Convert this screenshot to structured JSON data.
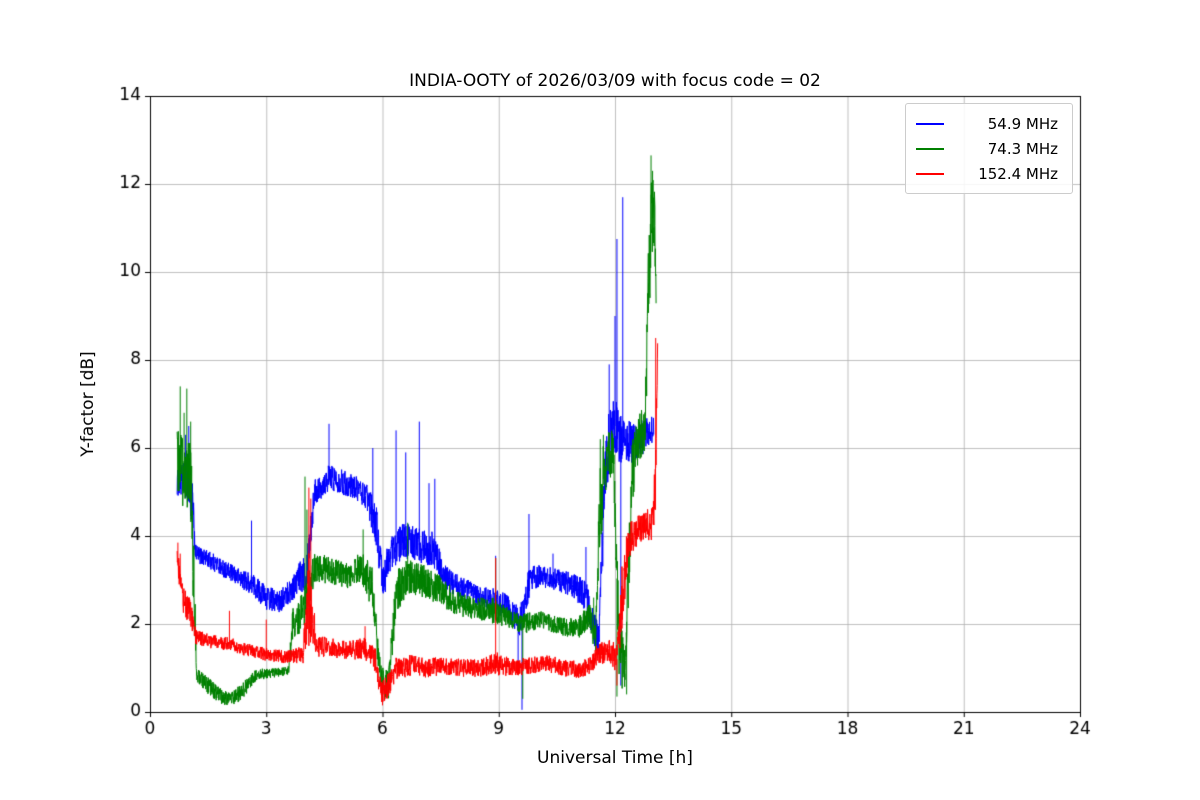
{
  "chart_data": {
    "type": "line",
    "title": "INDIA-OOTY of 2026/03/09 with focus code = 02",
    "xlabel": "Universal Time [h]",
    "ylabel": "Y-factor [dB]",
    "xlim": [
      0,
      24
    ],
    "ylim": [
      0,
      14
    ],
    "xticks": [
      0,
      3,
      6,
      9,
      12,
      15,
      18,
      21,
      24
    ],
    "yticks": [
      0,
      2,
      4,
      6,
      8,
      10,
      12,
      14
    ],
    "grid": true,
    "grid_color": "#b0b0b0",
    "background": "#ffffff",
    "text_color": "#000000",
    "axes_color": "#000000",
    "legend_position": "upper right",
    "series": [
      {
        "name": "54.9 MHz",
        "color": "#0000ff",
        "profile": [
          [
            0.7,
            5.2,
            0.3
          ],
          [
            0.95,
            5.3,
            0.45
          ],
          [
            1.1,
            4.6,
            0.6
          ],
          [
            1.18,
            3.6,
            0.2
          ],
          [
            1.55,
            3.45,
            0.2
          ],
          [
            2.2,
            3.1,
            0.2
          ],
          [
            2.65,
            2.9,
            0.25
          ],
          [
            3.0,
            2.6,
            0.28
          ],
          [
            3.35,
            2.5,
            0.25
          ],
          [
            3.75,
            2.9,
            0.3
          ],
          [
            4.05,
            3.3,
            0.5
          ],
          [
            4.25,
            5.0,
            0.3
          ],
          [
            4.65,
            5.35,
            0.3
          ],
          [
            5.3,
            5.1,
            0.27
          ],
          [
            5.6,
            4.9,
            0.3
          ],
          [
            5.85,
            4.2,
            0.5
          ],
          [
            6.0,
            2.9,
            0.45
          ],
          [
            6.2,
            3.6,
            0.4
          ],
          [
            6.55,
            3.9,
            0.4
          ],
          [
            7.3,
            3.7,
            0.4
          ],
          [
            7.65,
            3.0,
            0.3
          ],
          [
            8.1,
            2.8,
            0.25
          ],
          [
            8.55,
            2.6,
            0.25
          ],
          [
            8.95,
            2.5,
            0.3
          ],
          [
            9.25,
            2.35,
            0.3
          ],
          [
            9.55,
            2.05,
            0.35
          ],
          [
            9.78,
            2.9,
            0.4
          ],
          [
            10.05,
            3.1,
            0.25
          ],
          [
            10.55,
            3.0,
            0.25
          ],
          [
            10.95,
            2.85,
            0.3
          ],
          [
            11.25,
            2.65,
            0.35
          ],
          [
            11.45,
            1.9,
            0.4
          ],
          [
            11.58,
            1.6,
            0.35
          ],
          [
            11.75,
            5.5,
            0.9
          ],
          [
            11.95,
            6.6,
            0.7
          ],
          [
            12.15,
            6.2,
            0.6
          ],
          [
            12.45,
            6.1,
            0.45
          ],
          [
            12.75,
            6.25,
            0.4
          ],
          [
            13.0,
            6.45,
            0.3
          ]
        ],
        "spikes": [
          [
            0.78,
            6.0
          ],
          [
            0.92,
            6.3
          ],
          [
            1.0,
            6.5
          ],
          [
            2.62,
            4.35
          ],
          [
            4.62,
            6.55
          ],
          [
            5.75,
            6.0
          ],
          [
            6.35,
            6.4
          ],
          [
            6.6,
            5.9
          ],
          [
            6.95,
            6.6
          ],
          [
            7.2,
            5.2
          ],
          [
            7.35,
            5.3
          ],
          [
            8.92,
            3.55
          ],
          [
            9.5,
            0.9
          ],
          [
            9.6,
            0.05
          ],
          [
            9.78,
            4.5
          ],
          [
            10.4,
            3.6
          ],
          [
            11.25,
            3.75
          ],
          [
            11.85,
            7.9
          ],
          [
            12.0,
            9.0
          ],
          [
            12.05,
            10.75
          ],
          [
            12.2,
            11.7
          ],
          [
            12.15,
            0.6
          ]
        ]
      },
      {
        "name": "74.3 MHz",
        "color": "#008000",
        "profile": [
          [
            0.7,
            5.6,
            0.8
          ],
          [
            1.05,
            5.4,
            0.9
          ],
          [
            1.13,
            3.0,
            1.0
          ],
          [
            1.2,
            0.85,
            0.15
          ],
          [
            1.55,
            0.55,
            0.2
          ],
          [
            1.85,
            0.35,
            0.18
          ],
          [
            2.15,
            0.3,
            0.18
          ],
          [
            2.45,
            0.55,
            0.18
          ],
          [
            2.75,
            0.85,
            0.13
          ],
          [
            3.3,
            0.9,
            0.1
          ],
          [
            3.58,
            0.95,
            0.1
          ],
          [
            3.68,
            2.0,
            0.35
          ],
          [
            3.95,
            2.3,
            0.45
          ],
          [
            4.25,
            3.3,
            0.35
          ],
          [
            4.7,
            3.2,
            0.3
          ],
          [
            5.1,
            3.1,
            0.3
          ],
          [
            5.45,
            3.3,
            0.35
          ],
          [
            5.75,
            2.8,
            0.5
          ],
          [
            5.95,
            0.7,
            0.4
          ],
          [
            6.15,
            0.6,
            0.35
          ],
          [
            6.35,
            2.7,
            0.5
          ],
          [
            6.65,
            3.1,
            0.4
          ],
          [
            7.05,
            3.0,
            0.4
          ],
          [
            7.45,
            2.8,
            0.35
          ],
          [
            7.85,
            2.5,
            0.3
          ],
          [
            8.35,
            2.35,
            0.25
          ],
          [
            8.85,
            2.3,
            0.3
          ],
          [
            9.35,
            2.1,
            0.2
          ],
          [
            9.65,
            2.0,
            0.25
          ],
          [
            10.05,
            2.1,
            0.2
          ],
          [
            10.55,
            1.95,
            0.2
          ],
          [
            11.05,
            1.9,
            0.25
          ],
          [
            11.35,
            2.2,
            0.28
          ],
          [
            11.5,
            1.6,
            0.4
          ],
          [
            11.62,
            4.8,
            1.1
          ],
          [
            11.78,
            5.8,
            0.6
          ],
          [
            11.95,
            5.9,
            0.6
          ],
          [
            12.1,
            1.6,
            0.9
          ],
          [
            12.25,
            0.9,
            0.5
          ],
          [
            12.45,
            5.5,
            0.8
          ],
          [
            12.6,
            6.2,
            0.5
          ],
          [
            12.78,
            6.5,
            0.6
          ],
          [
            12.86,
            9.5,
            1.0
          ],
          [
            12.95,
            11.3,
            1.0
          ],
          [
            13.03,
            11.0,
            0.8
          ],
          [
            13.06,
            9.5,
            0.3
          ]
        ],
        "spikes": [
          [
            0.78,
            7.4
          ],
          [
            0.88,
            6.8
          ],
          [
            0.95,
            7.35
          ],
          [
            1.05,
            6.6
          ],
          [
            4.0,
            5.35
          ],
          [
            4.05,
            4.6
          ],
          [
            5.5,
            4.15
          ],
          [
            6.65,
            4.3
          ],
          [
            8.92,
            3.5
          ],
          [
            9.62,
            0.3
          ],
          [
            11.45,
            2.6
          ],
          [
            11.62,
            6.2
          ],
          [
            11.7,
            6.3
          ],
          [
            12.05,
            0.35
          ],
          [
            12.3,
            0.4
          ],
          [
            12.93,
            12.65
          ],
          [
            12.97,
            12.3
          ]
        ]
      },
      {
        "name": "152.4 MHz",
        "color": "#ff0000",
        "profile": [
          [
            0.7,
            3.45,
            0.3
          ],
          [
            0.85,
            2.55,
            0.3
          ],
          [
            1.05,
            2.2,
            0.35
          ],
          [
            1.18,
            1.7,
            0.18
          ],
          [
            1.6,
            1.6,
            0.16
          ],
          [
            2.05,
            1.55,
            0.16
          ],
          [
            2.55,
            1.4,
            0.15
          ],
          [
            3.05,
            1.3,
            0.15
          ],
          [
            3.55,
            1.25,
            0.15
          ],
          [
            3.95,
            1.3,
            0.2
          ],
          [
            4.1,
            2.6,
            1.1
          ],
          [
            4.3,
            1.5,
            0.25
          ],
          [
            4.7,
            1.45,
            0.22
          ],
          [
            5.1,
            1.4,
            0.22
          ],
          [
            5.55,
            1.45,
            0.25
          ],
          [
            5.82,
            1.15,
            0.3
          ],
          [
            5.97,
            0.45,
            0.25
          ],
          [
            6.12,
            0.55,
            0.3
          ],
          [
            6.35,
            1.0,
            0.25
          ],
          [
            6.75,
            1.05,
            0.25
          ],
          [
            7.15,
            1.0,
            0.22
          ],
          [
            7.55,
            1.05,
            0.22
          ],
          [
            8.05,
            1.0,
            0.2
          ],
          [
            8.55,
            1.0,
            0.2
          ],
          [
            8.95,
            1.1,
            0.28
          ],
          [
            9.35,
            1.0,
            0.2
          ],
          [
            9.75,
            1.05,
            0.2
          ],
          [
            10.25,
            1.1,
            0.2
          ],
          [
            10.75,
            1.0,
            0.2
          ],
          [
            11.05,
            0.95,
            0.2
          ],
          [
            11.35,
            1.05,
            0.2
          ],
          [
            11.55,
            1.3,
            0.25
          ],
          [
            11.85,
            1.4,
            0.25
          ],
          [
            12.05,
            1.2,
            0.35
          ],
          [
            12.18,
            2.6,
            0.8
          ],
          [
            12.35,
            3.9,
            0.4
          ],
          [
            12.55,
            4.1,
            0.35
          ],
          [
            12.75,
            4.2,
            0.35
          ],
          [
            12.95,
            4.35,
            0.45
          ],
          [
            13.04,
            5.0,
            0.8
          ],
          [
            13.1,
            8.3,
            0.25
          ]
        ],
        "spikes": [
          [
            0.72,
            3.85
          ],
          [
            0.78,
            3.6
          ],
          [
            2.05,
            2.3
          ],
          [
            3.0,
            2.1
          ],
          [
            4.1,
            5.1
          ],
          [
            4.15,
            4.85
          ],
          [
            5.55,
            1.95
          ],
          [
            6.0,
            0.15
          ],
          [
            8.92,
            3.5
          ],
          [
            12.05,
            0.6
          ],
          [
            13.05,
            8.5
          ]
        ]
      }
    ]
  }
}
